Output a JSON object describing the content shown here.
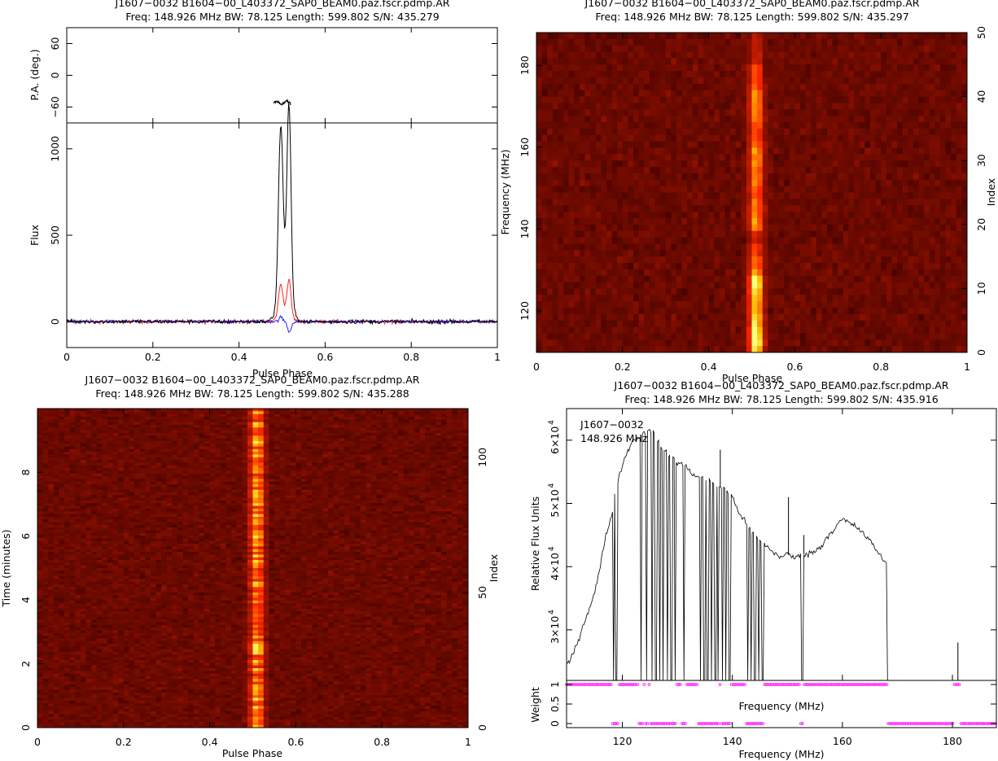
{
  "panels": {
    "profile": {
      "title_line1": "J1607−0032 B1604−00_L403372_SAP0_BEAM0.paz.fscr.pdmp.AR",
      "title_line2": "Freq: 148.926 MHz BW: 78.125 Length: 599.802 S/N: 435.279",
      "xlabel": "Pulse Phase",
      "pa_ylabel": "P.A. (deg.)",
      "flux_ylabel": "Flux"
    },
    "freq_phase": {
      "title_line1": "J1607−0032 B1604−00_L403372_SAP0_BEAM0.paz.fscr.pdmp.AR",
      "title_line2": "Freq: 148.926 MHz BW: 78.125 Length: 599.802 S/N: 435.297",
      "xlabel": "Pulse Phase",
      "ylabel": "Frequency (MHz)",
      "ylabel_right": "Index"
    },
    "time_phase": {
      "title_line1": "J1607−0032 B1604−00_L403372_SAP0_BEAM0.paz.fscr.pdmp.AR",
      "title_line2": "Freq: 148.926 MHz BW: 78.125 Length: 599.802 S/N: 435.288",
      "xlabel": "Pulse Phase",
      "ylabel": "Time (minutes)",
      "ylabel_right": "Index"
    },
    "bandpass": {
      "title_line1": "J1607−0032 B1604−00_L403372_SAP0_BEAM0.paz.fscr.pdmp.AR",
      "title_line2": "Freq: 148.926 MHz BW: 78.125 Length: 599.802 S/N: 435.916",
      "annotation_line1": "J1607−0032",
      "annotation_line2": "148.926 MHz",
      "ylabel": "Relative Flux Units",
      "xlabel_mid": "Frequency (MHz)",
      "xlabel": "Frequency (MHz)",
      "weight_ylabel": "Weight"
    }
  },
  "colors": {
    "stokes_I": "#000000",
    "linear": "#ff2020",
    "circular": "#2020ff",
    "weights": "#ff00ff"
  },
  "chart_data": [
    {
      "type": "line",
      "title": "J1607−0032 B1604−00_L403372_SAP0_BEAM0.paz.fscr.pdmp.AR",
      "subtitle": "Freq: 148.926 MHz BW: 78.125 Length: 599.802 S/N: 435.279",
      "xlabel": "Pulse Phase",
      "ylabel": "Flux",
      "xlim": [
        0,
        1
      ],
      "ylim": [
        -150,
        1150
      ],
      "x_ticks": [
        "0",
        "0.2",
        "0.4",
        "0.6",
        "0.8",
        "1"
      ],
      "y_ticks": [
        "0",
        "500",
        "1000"
      ],
      "profile_peaks": [
        {
          "x": 0.497,
          "y": 1000
        },
        {
          "x": 0.516,
          "y": 1135
        }
      ],
      "pa_panel": {
        "ylabel": "P.A. (deg.)",
        "ylim": [
          -90,
          90
        ],
        "y_ticks": [
          "−60",
          "0",
          "60"
        ],
        "pa_x_range": [
          0.48,
          0.52
        ],
        "pa_mean": -52
      }
    },
    {
      "type": "heatmap",
      "title": "J1607−0032 B1604−00_L403372_SAP0_BEAM0.paz.fscr.pdmp.AR",
      "subtitle": "Freq: 148.926 MHz BW: 78.125 Length: 599.802 S/N: 435.297",
      "xlabel": "Pulse Phase",
      "ylabel": "Frequency (MHz)",
      "xlim": [
        0,
        1
      ],
      "ylim": [
        109.86,
        187.99
      ],
      "x_ticks": [
        "0",
        "0.2",
        "0.4",
        "0.6",
        "0.8",
        "1"
      ],
      "y_ticks": [
        "120",
        "140",
        "160",
        "180"
      ],
      "right_axis": {
        "label": "Index",
        "ticks": [
          "0",
          "10",
          "20",
          "30",
          "40",
          "50"
        ]
      },
      "pulse_phase_range": [
        0.49,
        0.53
      ]
    },
    {
      "type": "heatmap",
      "title": "J1607−0032 B1604−00_L403372_SAP0_BEAM0.paz.fscr.pdmp.AR",
      "subtitle": "Freq: 148.926 MHz BW: 78.125 Length: 599.802 S/N: 435.288",
      "xlabel": "Pulse Phase",
      "ylabel": "Time (minutes)",
      "xlim": [
        0,
        1
      ],
      "ylim": [
        0,
        10
      ],
      "x_ticks": [
        "0",
        "0.2",
        "0.4",
        "0.6",
        "0.8",
        "1"
      ],
      "y_ticks": [
        "0",
        "2",
        "4",
        "6",
        "8"
      ],
      "right_axis": {
        "label": "Index",
        "ticks": [
          "0",
          "50",
          "100"
        ]
      },
      "pulse_phase_range": [
        0.49,
        0.53
      ]
    },
    {
      "type": "line",
      "title": "J1607−0032 B1604−00_L403372_SAP0_BEAM0.paz.fscr.pdmp.AR",
      "subtitle": "Freq: 148.926 MHz BW: 78.125 Length: 599.802 S/N: 435.916",
      "xlabel": "Frequency (MHz)",
      "ylabel": "Relative Flux Units",
      "xlim": [
        109.86,
        187.99
      ],
      "ylim": [
        22000,
        65000
      ],
      "x_ticks": [
        "120",
        "140",
        "160",
        "180"
      ],
      "y_tick_mantissas": [
        "3×10",
        "4×10",
        "5×10",
        "6×10"
      ],
      "y_tick_exponent": "4",
      "y_tick_values": [
        30000,
        40000,
        50000,
        60000
      ],
      "bandpass": [
        [
          110.0,
          24500
        ],
        [
          111.0,
          26000
        ],
        [
          112.0,
          28500
        ],
        [
          113.0,
          31000
        ],
        [
          114.0,
          33500
        ],
        [
          115.0,
          36000
        ],
        [
          116.0,
          40000
        ],
        [
          117.0,
          45000
        ],
        [
          118.0,
          48000
        ],
        [
          119.0,
          53000
        ],
        [
          120.0,
          56000
        ],
        [
          121.0,
          58500
        ],
        [
          122.0,
          60000
        ],
        [
          123.0,
          60500
        ],
        [
          124.0,
          61000
        ],
        [
          125.0,
          62000
        ],
        [
          126.0,
          60500
        ],
        [
          127.0,
          59000
        ],
        [
          128.0,
          58000
        ],
        [
          129.0,
          57500
        ],
        [
          130.0,
          56500
        ],
        [
          131.0,
          56000
        ],
        [
          132.0,
          55500
        ],
        [
          133.0,
          54500
        ],
        [
          134.0,
          54000
        ],
        [
          135.0,
          54000
        ],
        [
          136.0,
          53500
        ],
        [
          137.0,
          53000
        ],
        [
          138.0,
          52500
        ],
        [
          139.0,
          52000
        ],
        [
          140.0,
          51000
        ],
        [
          141.0,
          49000
        ],
        [
          142.0,
          47500
        ],
        [
          143.0,
          46000
        ],
        [
          144.0,
          45000
        ],
        [
          145.0,
          44000
        ],
        [
          146.0,
          43500
        ],
        [
          147.0,
          42500
        ],
        [
          148.0,
          42000
        ],
        [
          149.0,
          41500
        ],
        [
          150.0,
          42000
        ],
        [
          151.0,
          41500
        ],
        [
          152.0,
          41500
        ],
        [
          153.0,
          42000
        ],
        [
          154.0,
          42000
        ],
        [
          155.0,
          42500
        ],
        [
          156.0,
          43000
        ],
        [
          157.0,
          44500
        ],
        [
          158.0,
          45500
        ],
        [
          159.0,
          46500
        ],
        [
          160.0,
          47500
        ],
        [
          161.0,
          47000
        ],
        [
          162.0,
          46500
        ],
        [
          163.0,
          46000
        ],
        [
          164.0,
          45000
        ],
        [
          165.0,
          44000
        ],
        [
          166.0,
          43000
        ],
        [
          167.0,
          41500
        ],
        [
          168.0,
          40500
        ]
      ],
      "rfi_spikes": [
        {
          "x": 137.8,
          "y": 58500
        },
        {
          "x": 150.2,
          "y": 51000
        },
        {
          "x": 153.0,
          "y": 45000
        },
        {
          "x": 181.0,
          "y": 28000
        }
      ],
      "zapped_channels_MHz": [
        118.4,
        118.9,
        123.4,
        124.4,
        125.4,
        126.1,
        126.8,
        127.4,
        128.2,
        128.9,
        129.6,
        131.2,
        134.2,
        134.9,
        135.5,
        136.2,
        136.9,
        137.4,
        138.2,
        138.8,
        139.5,
        142.8,
        143.4,
        144.1,
        144.8,
        145.5,
        152.7
      ],
      "weight_panel": {
        "ylabel": "Weight",
        "ylim": [
          0,
          1
        ],
        "y_ticks": [
          "0",
          "0.5",
          "1"
        ],
        "weight_zero_ranges_MHz": [
          [
            168.9,
            180.3
          ],
          [
            181.4,
            187.99
          ]
        ]
      }
    }
  ]
}
